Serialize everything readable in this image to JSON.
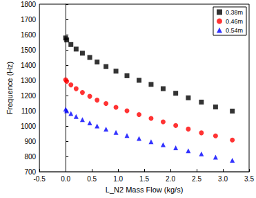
{
  "chart_data": {
    "type": "scatter",
    "x_label": "L_N2 Mass Flow (kg/s)",
    "y_label": "Frequence (Hz)",
    "x": [
      0,
      0.02,
      0.1,
      0.2,
      0.32,
      0.46,
      0.6,
      0.77,
      0.96,
      1.17,
      1.4,
      1.63,
      1.86,
      2.1,
      2.34,
      2.59,
      2.86,
      3.18
    ],
    "series": [
      {
        "name": "0.38m",
        "color": "#000000",
        "marker": "square",
        "values": [
          1578,
          1565,
          1535,
          1505,
          1478,
          1450,
          1420,
          1390,
          1360,
          1330,
          1300,
          1273,
          1245,
          1215,
          1185,
          1157,
          1125,
          1098
        ]
      },
      {
        "name": "0.46m",
        "color": "#ff0000",
        "marker": "circle",
        "values": [
          1303,
          1293,
          1270,
          1245,
          1220,
          1195,
          1170,
          1148,
          1123,
          1100,
          1075,
          1050,
          1027,
          1003,
          980,
          955,
          935,
          908
        ]
      },
      {
        "name": "0.54m",
        "color": "#0000ff",
        "marker": "triangle",
        "values": [
          1110,
          1100,
          1082,
          1063,
          1042,
          1020,
          1000,
          980,
          958,
          938,
          918,
          897,
          877,
          857,
          837,
          817,
          795,
          775
        ]
      }
    ],
    "xlim": [
      -0.5,
      3.5
    ],
    "xticks": [
      -0.5,
      {
        "value": 0,
        "label": "0.0"
      },
      0.5,
      {
        "value": 1,
        "label": "1.0"
      },
      1.5,
      {
        "value": 2,
        "label": "2.0"
      },
      2.5,
      {
        "value": 3,
        "label": "3.0"
      },
      3.5
    ],
    "ylim": [
      700,
      1800
    ],
    "yticks": [
      700,
      800,
      900,
      1000,
      1100,
      1200,
      1300,
      1400,
      1500,
      1600,
      1700,
      1800
    ],
    "grid": false,
    "legend": "top-right"
  }
}
